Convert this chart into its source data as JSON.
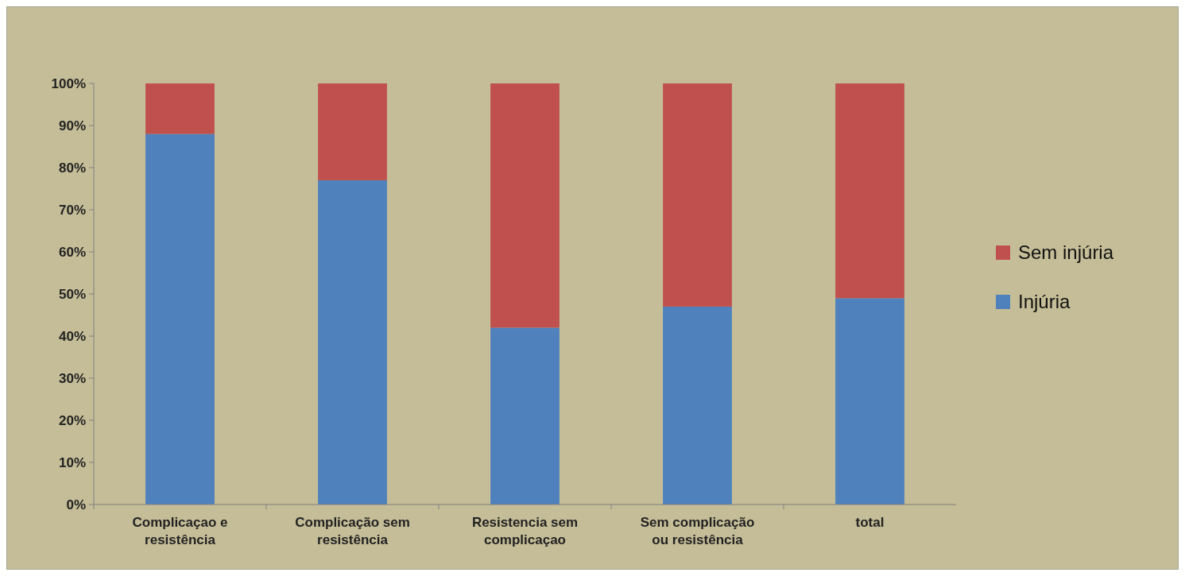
{
  "chart_data": {
    "type": "bar",
    "stacked": true,
    "categories": [
      "Complicaçao e resistência",
      "Complicação sem resistência",
      "Resistencia sem complicaçao",
      "Sem complicação ou resistência",
      "total"
    ],
    "series": [
      {
        "name": "Injúria",
        "color": "#4f81bd",
        "values": [
          88,
          77,
          42,
          47,
          49
        ]
      },
      {
        "name": "Sem injúria",
        "color": "#c0504d",
        "values": [
          12,
          23,
          58,
          53,
          51
        ]
      }
    ],
    "ylim": [
      0,
      100
    ],
    "yticks": [
      {
        "value": 0,
        "label": "0%"
      },
      {
        "value": 10,
        "label": "10%"
      },
      {
        "value": 20,
        "label": "20%"
      },
      {
        "value": 30,
        "label": "30%"
      },
      {
        "value": 40,
        "label": "40%"
      },
      {
        "value": 50,
        "label": "50%"
      },
      {
        "value": 60,
        "label": "60%"
      },
      {
        "value": 70,
        "label": "70%"
      },
      {
        "value": 80,
        "label": "80%"
      },
      {
        "value": 90,
        "label": "90%"
      },
      {
        "value": 100,
        "label": "100%"
      }
    ],
    "legend": "right"
  }
}
